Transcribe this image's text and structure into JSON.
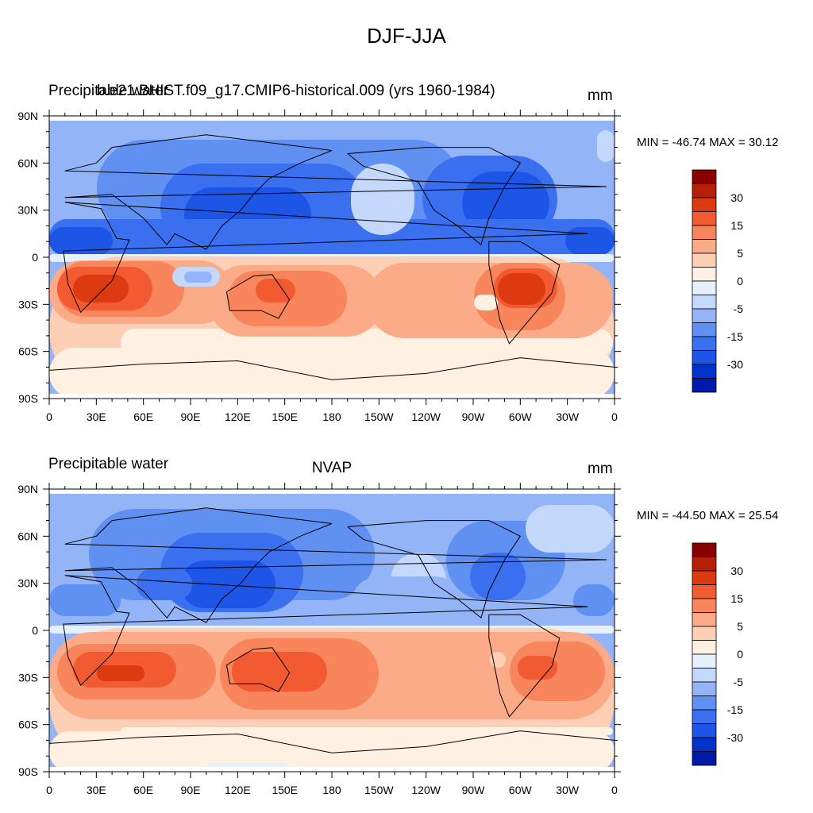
{
  "title": "DJF-JJA",
  "colors": {
    "levels": [
      "#00007f",
      "#0019a8",
      "#0033cc",
      "#1d55e6",
      "#3a6ff0",
      "#6090f2",
      "#93b4f6",
      "#c3d8fa",
      "#e6f0fd",
      "#fff1e2",
      "#fdd0b5",
      "#fbab87",
      "#f8855c",
      "#f25a31",
      "#dd3a12",
      "#b81f08",
      "#8a0000"
    ]
  },
  "colorbar_labels": [
    "30",
    "15",
    "5",
    "0",
    "-5",
    "-15",
    "-30"
  ],
  "x_ticks": [
    "0",
    "30E",
    "60E",
    "90E",
    "120E",
    "150E",
    "180",
    "150W",
    "120W",
    "90W",
    "60W",
    "30W",
    "0"
  ],
  "y_ticks": [
    "90N",
    "60N",
    "30N",
    "0",
    "30S",
    "60S",
    "90S"
  ],
  "panels": [
    {
      "left_title": "Precipitable water",
      "overlay_title": "b.e21.BHIST.f09_g17.CMIP6-historical.009 (yrs 1960-1984)",
      "center_title": "",
      "units": "mm",
      "minmax": "MIN = -46.74 MAX =  30.12"
    },
    {
      "left_title": "Precipitable water",
      "overlay_title": "",
      "center_title": "NVAP",
      "units": "mm",
      "minmax": "MIN = -44.50 MAX =  25.54"
    }
  ]
}
